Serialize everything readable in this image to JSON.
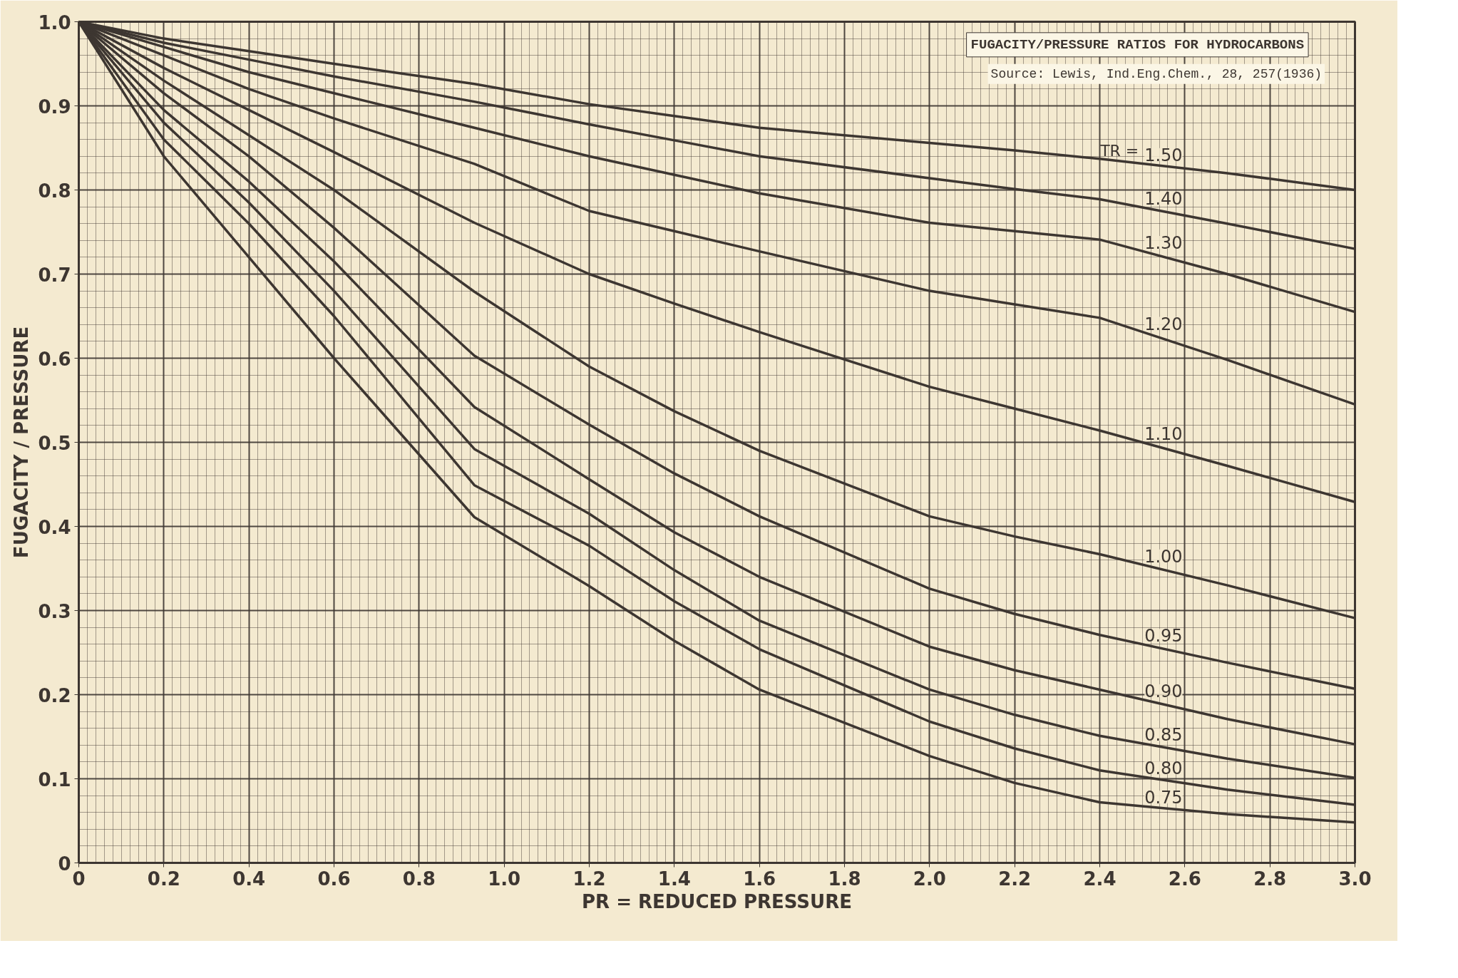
{
  "chart_data": {
    "type": "line",
    "title": "FUGACITY/PRESSURE RATIOS FOR HYDROCARBONS",
    "xlabel": "PR = REDUCED PRESSURE",
    "ylabel": "FUGACITY / PRESSURE",
    "annotations": [
      "Source: Lewis, Ind.Eng.Chem., 28, 257(1936)",
      "TR ="
    ],
    "x": [
      0,
      0.2,
      0.4,
      0.6,
      0.93,
      1.2,
      1.4,
      1.6,
      2.0,
      2.2,
      2.4,
      2.7,
      3.0
    ],
    "series": [
      {
        "name": "1.50",
        "color": "#3d3631",
        "values": [
          1.0,
          0.98,
          0.965,
          0.95,
          0.926,
          0.902,
          0.888,
          0.874,
          0.856,
          0.847,
          0.837,
          0.82,
          0.8
        ]
      },
      {
        "name": "1.40",
        "color": "#3d3631",
        "values": [
          1.0,
          0.975,
          0.955,
          0.935,
          0.905,
          0.878,
          0.859,
          0.84,
          0.814,
          0.801,
          0.789,
          0.76,
          0.73
        ]
      },
      {
        "name": "1.30",
        "color": "#3d3631",
        "values": [
          1.0,
          0.97,
          0.94,
          0.915,
          0.874,
          0.84,
          0.818,
          0.796,
          0.761,
          0.751,
          0.741,
          0.7,
          0.655
        ]
      },
      {
        "name": "1.20",
        "color": "#3d3631",
        "values": [
          1.0,
          0.96,
          0.92,
          0.885,
          0.831,
          0.775,
          0.751,
          0.727,
          0.68,
          0.664,
          0.648,
          0.598,
          0.545
        ]
      },
      {
        "name": "1.10",
        "color": "#3d3631",
        "values": [
          1.0,
          0.945,
          0.895,
          0.845,
          0.761,
          0.7,
          0.665,
          0.631,
          0.566,
          0.54,
          0.514,
          0.472,
          0.429
        ]
      },
      {
        "name": "1.00",
        "color": "#3d3631",
        "values": [
          1.0,
          0.93,
          0.865,
          0.8,
          0.679,
          0.59,
          0.537,
          0.49,
          0.412,
          0.388,
          0.367,
          0.33,
          0.291
        ]
      },
      {
        "name": "0.95",
        "color": "#3d3631",
        "values": [
          1.0,
          0.915,
          0.84,
          0.755,
          0.603,
          0.521,
          0.463,
          0.412,
          0.326,
          0.296,
          0.271,
          0.238,
          0.207
        ]
      },
      {
        "name": "0.90",
        "color": "#3d3631",
        "values": [
          1.0,
          0.895,
          0.81,
          0.715,
          0.542,
          0.456,
          0.393,
          0.34,
          0.257,
          0.229,
          0.206,
          0.171,
          0.141
        ]
      },
      {
        "name": "0.85",
        "color": "#3d3631",
        "values": [
          1.0,
          0.88,
          0.785,
          0.68,
          0.492,
          0.415,
          0.348,
          0.288,
          0.206,
          0.176,
          0.151,
          0.124,
          0.101
        ]
      },
      {
        "name": "0.80",
        "color": "#3d3631",
        "values": [
          1.0,
          0.86,
          0.76,
          0.65,
          0.449,
          0.377,
          0.311,
          0.254,
          0.168,
          0.136,
          0.11,
          0.087,
          0.069
        ]
      },
      {
        "name": "0.75",
        "color": "#3d3631",
        "values": [
          1.0,
          0.84,
          0.72,
          0.6,
          0.411,
          0.329,
          0.264,
          0.206,
          0.127,
          0.095,
          0.072,
          0.058,
          0.048
        ]
      }
    ],
    "xlim": [
      0,
      3.0
    ],
    "ylim": [
      0,
      1.0
    ],
    "xticks": [
      0,
      0.2,
      0.4,
      0.6,
      0.8,
      {
        "value": 1,
        "label": "1.0"
      },
      1.2,
      1.4,
      1.6,
      1.8,
      {
        "value": 2,
        "label": "2.0"
      },
      2.2,
      2.4,
      2.6,
      2.8,
      {
        "value": 3,
        "label": "3.0"
      }
    ],
    "yticks": [
      0,
      0.1,
      0.2,
      0.3,
      0.4,
      0.5,
      0.6,
      0.7,
      0.8,
      0.9,
      {
        "value": 1,
        "label": "1.0"
      }
    ],
    "grid": true,
    "legend": false,
    "line_style": "solid",
    "marker": "none"
  }
}
